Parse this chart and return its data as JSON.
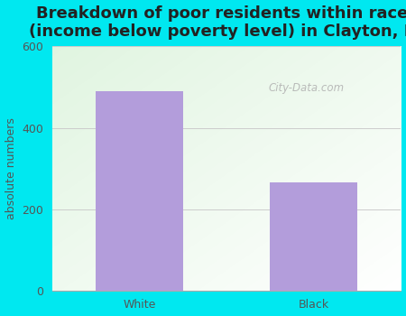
{
  "title": "Breakdown of poor residents within races\n(income below poverty level) in Clayton, NJ",
  "categories": [
    "White",
    "Black"
  ],
  "values": [
    490,
    265
  ],
  "bar_color": "#b39ddb",
  "ylabel": "absolute numbers",
  "ylim": [
    0,
    600
  ],
  "yticks": [
    0,
    200,
    400,
    600
  ],
  "outer_bg": "#00e8f0",
  "plot_bg_color": "#e8f5e9",
  "grid_color": "#cccccc",
  "title_fontsize": 13,
  "axis_label_fontsize": 9,
  "tick_fontsize": 9,
  "watermark_text": "City-Data.com",
  "watermark_color": "#b0b0b0",
  "title_color": "#222222",
  "tick_color": "#555555"
}
